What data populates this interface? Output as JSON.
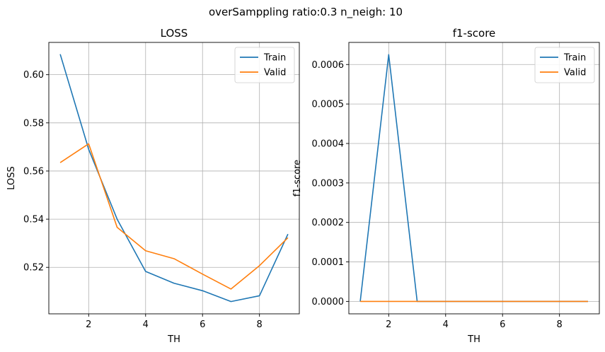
{
  "figure": {
    "suptitle": "overSamppling ratio:0.3 n_neigh: 10"
  },
  "chart_data": [
    {
      "type": "line",
      "title": "LOSS",
      "xlabel": "TH",
      "ylabel": "LOSS",
      "xlim": [
        0.6,
        9.4
      ],
      "ylim": [
        0.5007,
        0.6134
      ],
      "xticks": [
        2,
        4,
        6,
        8
      ],
      "xtick_labels": [
        "2",
        "4",
        "6",
        "8"
      ],
      "yticks": [
        0.52,
        0.54,
        0.56,
        0.58,
        0.6
      ],
      "ytick_labels": [
        "0.52",
        "0.54",
        "0.56",
        "0.58",
        "0.60"
      ],
      "grid": true,
      "legend": "top-right",
      "x": [
        1,
        2,
        3,
        4,
        5,
        6,
        7,
        8,
        9
      ],
      "series": [
        {
          "name": "Train",
          "color": "#1f77b4",
          "values": [
            0.6085,
            0.569,
            0.54,
            0.5183,
            0.5134,
            0.5103,
            0.5058,
            0.5082,
            0.5338
          ]
        },
        {
          "name": "Valid",
          "color": "#ff7f0e",
          "values": [
            0.5635,
            0.5713,
            0.5366,
            0.5269,
            0.5236,
            0.5172,
            0.511,
            0.5207,
            0.5323
          ]
        }
      ]
    },
    {
      "type": "line",
      "title": "f1-score",
      "xlabel": "TH",
      "ylabel": "f1-score",
      "xlim": [
        0.6,
        9.4
      ],
      "ylim": [
        -3.15e-05,
        0.000656
      ],
      "xticks": [
        2,
        4,
        6,
        8
      ],
      "xtick_labels": [
        "2",
        "4",
        "6",
        "8"
      ],
      "yticks": [
        0,
        0.0001,
        0.0002,
        0.0003,
        0.0004,
        0.0005,
        0.0006
      ],
      "ytick_labels": [
        "0.0000",
        "0.0001",
        "0.0002",
        "0.0003",
        "0.0004",
        "0.0005",
        "0.0006"
      ],
      "grid": true,
      "legend": "top-right",
      "x": [
        1,
        2,
        3,
        4,
        5,
        6,
        7,
        8,
        9
      ],
      "series": [
        {
          "name": "Train",
          "color": "#1f77b4",
          "values": [
            0,
            0.000625,
            0,
            0,
            0,
            0,
            0,
            0,
            0
          ]
        },
        {
          "name": "Valid",
          "color": "#ff7f0e",
          "values": [
            0,
            0,
            0,
            0,
            0,
            0,
            0,
            0,
            0
          ]
        }
      ]
    }
  ]
}
